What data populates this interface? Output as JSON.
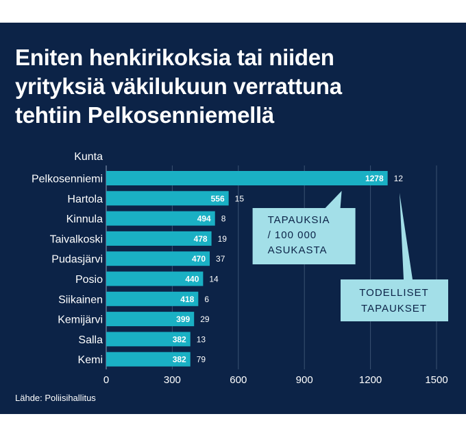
{
  "title_lines": [
    "Eniten henkirikoksia tai niiden",
    "yrityksiä väkilukuun verrattuna",
    "tehtiin Pelkosenniemellä"
  ],
  "source": "Lähde: Poliisihallitus",
  "colors": {
    "background": "#0c2347",
    "bar": "#1ab0c4",
    "callout": "#a3dfe8",
    "callout_text": "#0c2347",
    "text": "#ffffff",
    "grid": "#3a5272"
  },
  "chart_data": {
    "type": "bar",
    "orientation": "horizontal",
    "ylabel": "Kunta",
    "categories": [
      "Pelkosenniemi",
      "Hartola",
      "Kinnula",
      "Taivalkoski",
      "Pudasjärvi",
      "Posio",
      "Siikainen",
      "Kemijärvi",
      "Salla",
      "Kemi"
    ],
    "series": [
      {
        "name": "TAPAUKSIA / 100 000 ASUKASTA",
        "values": [
          1278,
          556,
          494,
          478,
          470,
          440,
          418,
          399,
          382,
          382
        ]
      },
      {
        "name": "TODELLISET TAPAUKSET",
        "values": [
          12,
          15,
          8,
          19,
          37,
          14,
          6,
          29,
          13,
          79
        ]
      }
    ],
    "xlim": [
      0,
      1500
    ],
    "xticks": [
      0,
      300,
      600,
      900,
      1200,
      1500
    ],
    "grid": true,
    "annotations": [
      {
        "lines": [
          "TAPAUKSIA",
          "/ 100 000",
          "ASUKASTA"
        ]
      },
      {
        "lines": [
          "TODELLISET",
          "TAPAUKSET"
        ]
      }
    ]
  }
}
